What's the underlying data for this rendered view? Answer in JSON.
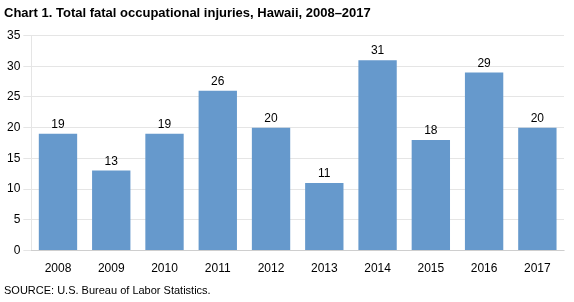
{
  "chart_data": {
    "type": "bar",
    "title": "Chart 1. Total fatal occupational injuries, Hawaii, 2008–2017",
    "annotations": [
      "SOURCE: U.S. Bureau of Labor Statistics."
    ],
    "categories": [
      "2008",
      "2009",
      "2010",
      "2011",
      "2012",
      "2013",
      "2014",
      "2015",
      "2016",
      "2017"
    ],
    "values": [
      19,
      13,
      19,
      26,
      20,
      11,
      31,
      18,
      29,
      20
    ],
    "color": "#6699cc",
    "ylim": [
      0,
      35
    ],
    "yticks": [
      0,
      5,
      10,
      15,
      20,
      25,
      30,
      35
    ],
    "grid": true,
    "data_labels": true
  }
}
